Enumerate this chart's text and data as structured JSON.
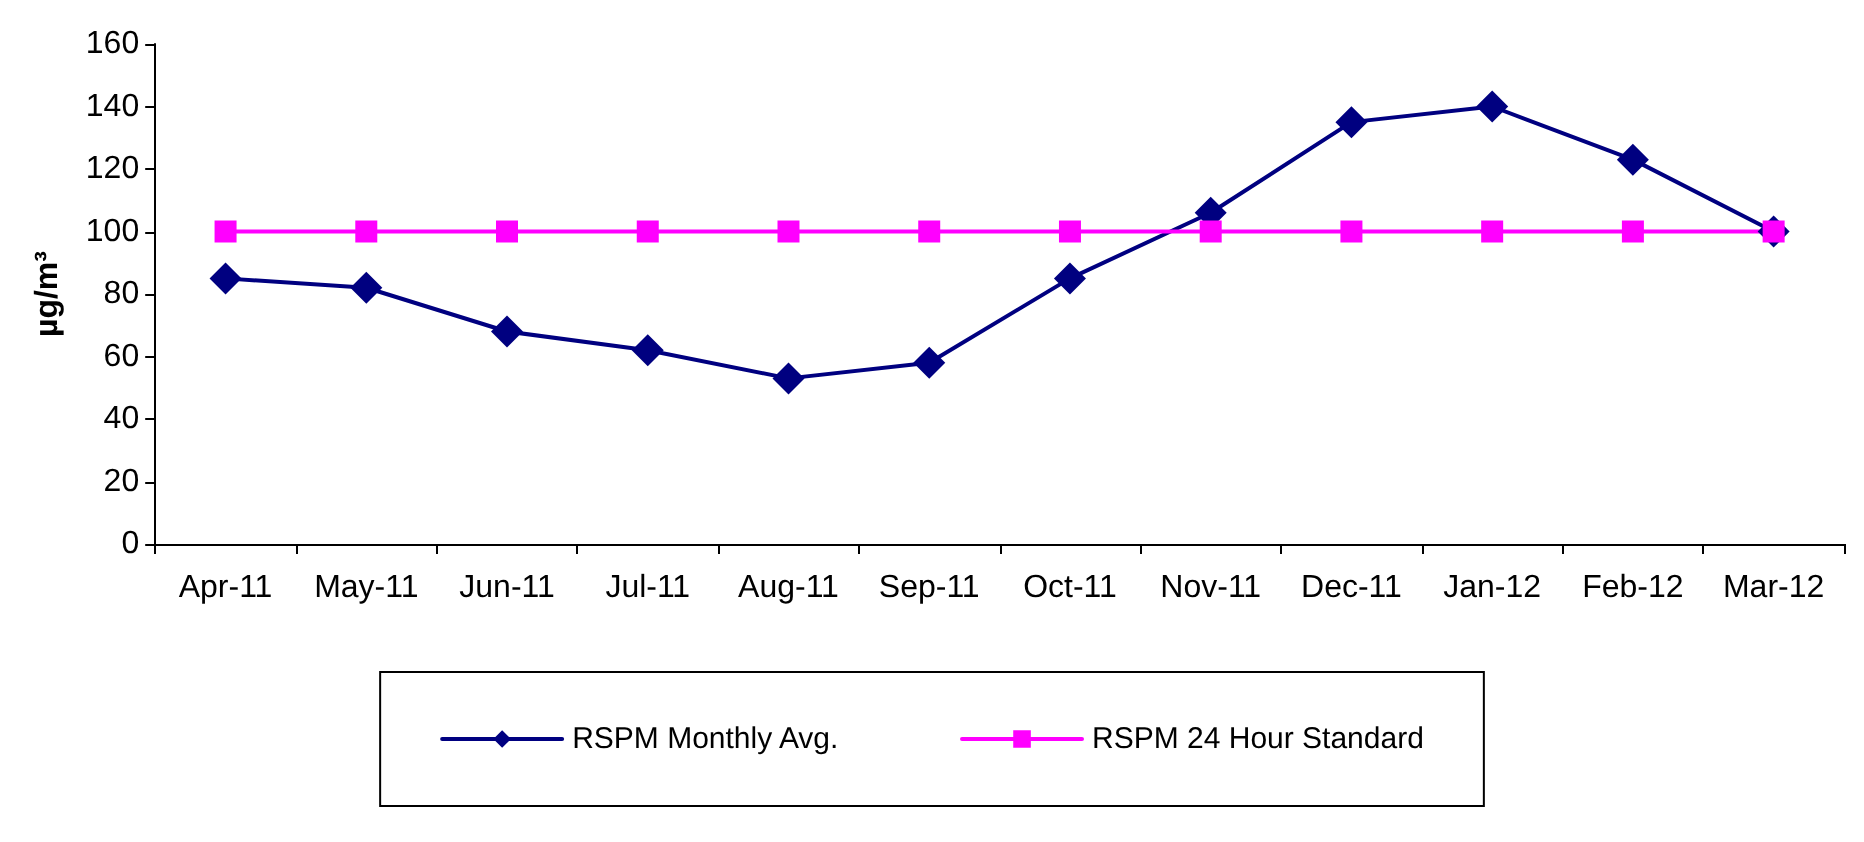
{
  "chart_data": {
    "type": "line",
    "ylabel": "µg/m³",
    "categories": [
      "Apr-11",
      "May-11",
      "Jun-11",
      "Jul-11",
      "Aug-11",
      "Sep-11",
      "Oct-11",
      "Nov-11",
      "Dec-11",
      "Jan-12",
      "Feb-12",
      "Mar-12"
    ],
    "series": [
      {
        "name": "RSPM Monthly Avg.",
        "color": "#000080",
        "marker": "diamond",
        "values": [
          85,
          82,
          68,
          62,
          53,
          58,
          85,
          106,
          135,
          140,
          123,
          100
        ]
      },
      {
        "name": "RSPM 24 Hour Standard",
        "color": "#ff00ff",
        "marker": "square",
        "values": [
          100,
          100,
          100,
          100,
          100,
          100,
          100,
          100,
          100,
          100,
          100,
          100
        ]
      }
    ],
    "ylim": [
      0,
      160
    ],
    "yticks": [
      0,
      20,
      40,
      60,
      80,
      100,
      120,
      140,
      160
    ],
    "grid": false,
    "legend": "bottom",
    "line_style": "solid"
  }
}
